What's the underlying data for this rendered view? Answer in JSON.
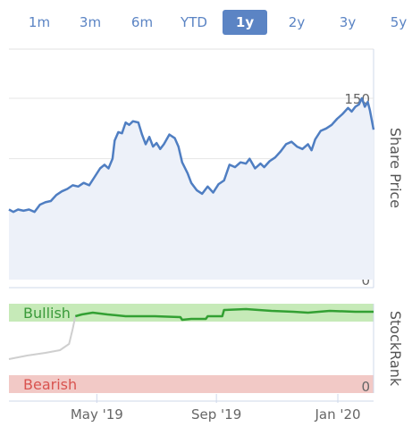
{
  "range_buttons": [
    {
      "label": "1m",
      "active": false
    },
    {
      "label": "3m",
      "active": false
    },
    {
      "label": "6m",
      "active": false
    },
    {
      "label": "YTD",
      "active": false
    },
    {
      "label": "1y",
      "active": true
    },
    {
      "label": "2y",
      "active": false
    },
    {
      "label": "3y",
      "active": false
    },
    {
      "label": "5y",
      "active": false
    }
  ],
  "colors": {
    "accent": "#5b84c4",
    "price_line": "#4f7ec2",
    "price_fill": "#edf1f9",
    "bullish_band": "#c6eab8",
    "bearish_band": "#f2c9c6",
    "stockrank_line": "#33a033",
    "stockrank_early": "#cfcfcf",
    "bullish_text": "#3a9a3a",
    "bearish_text": "#d9534f"
  },
  "chart_data": [
    {
      "type": "line",
      "title": "",
      "ylabel": "Share Price",
      "ylim": [
        0,
        160
      ],
      "yticks": [
        0,
        50,
        100,
        150
      ],
      "x_range": [
        0,
        1
      ],
      "xticks": [
        {
          "x": 0.241,
          "label": "May '19"
        },
        {
          "x": 0.569,
          "label": "Sep '19"
        },
        {
          "x": 0.902,
          "label": "Jan '20"
        }
      ],
      "series": [
        {
          "name": "",
          "points": [
            [
              0,
              58
            ],
            [
              0.012,
              56
            ],
            [
              0.025,
              58
            ],
            [
              0.04,
              57
            ],
            [
              0.055,
              58
            ],
            [
              0.07,
              56
            ],
            [
              0.085,
              62
            ],
            [
              0.1,
              64
            ],
            [
              0.115,
              65
            ],
            [
              0.13,
              70
            ],
            [
              0.145,
              73
            ],
            [
              0.16,
              75
            ],
            [
              0.175,
              78
            ],
            [
              0.19,
              77
            ],
            [
              0.205,
              80
            ],
            [
              0.22,
              78
            ],
            [
              0.235,
              85
            ],
            [
              0.25,
              92
            ],
            [
              0.262,
              95
            ],
            [
              0.273,
              92
            ],
            [
              0.284,
              100
            ],
            [
              0.29,
              115
            ],
            [
              0.3,
              122
            ],
            [
              0.31,
              121
            ],
            [
              0.32,
              130
            ],
            [
              0.33,
              128
            ],
            [
              0.34,
              131
            ],
            [
              0.355,
              130
            ],
            [
              0.365,
              120
            ],
            [
              0.375,
              112
            ],
            [
              0.385,
              118
            ],
            [
              0.395,
              110
            ],
            [
              0.405,
              113
            ],
            [
              0.415,
              108
            ],
            [
              0.425,
              112
            ],
            [
              0.44,
              120
            ],
            [
              0.455,
              117
            ],
            [
              0.465,
              110
            ],
            [
              0.475,
              97
            ],
            [
              0.49,
              88
            ],
            [
              0.5,
              80
            ],
            [
              0.515,
              74
            ],
            [
              0.53,
              71
            ],
            [
              0.545,
              77
            ],
            [
              0.56,
              72
            ],
            [
              0.575,
              79
            ],
            [
              0.59,
              82
            ],
            [
              0.605,
              95
            ],
            [
              0.62,
              93
            ],
            [
              0.635,
              97
            ],
            [
              0.65,
              96
            ],
            [
              0.66,
              100
            ],
            [
              0.675,
              92
            ],
            [
              0.69,
              96
            ],
            [
              0.7,
              93
            ],
            [
              0.715,
              98
            ],
            [
              0.73,
              101
            ],
            [
              0.745,
              106
            ],
            [
              0.76,
              112
            ],
            [
              0.775,
              114
            ],
            [
              0.79,
              110
            ],
            [
              0.805,
              108
            ],
            [
              0.82,
              112
            ],
            [
              0.83,
              107
            ],
            [
              0.84,
              116
            ],
            [
              0.855,
              123
            ],
            [
              0.87,
              125
            ],
            [
              0.885,
              128
            ],
            [
              0.9,
              133
            ],
            [
              0.915,
              137
            ],
            [
              0.93,
              142
            ],
            [
              0.94,
              139
            ],
            [
              0.95,
              143
            ],
            [
              0.96,
              145
            ],
            [
              0.968,
              150
            ],
            [
              0.976,
              143
            ],
            [
              0.984,
              147
            ],
            [
              0.99,
              140
            ],
            [
              1.0,
              124
            ]
          ]
        }
      ]
    },
    {
      "type": "line",
      "ylabel": "StockRank",
      "ylim": [
        0,
        100
      ],
      "yticks": [
        0
      ],
      "bands": [
        {
          "label": "Bullish",
          "from": 80,
          "to": 100
        },
        {
          "label": "Bearish",
          "from": 0,
          "to": 20
        }
      ],
      "series": [
        {
          "name": "",
          "style": "early",
          "points": [
            [
              0,
              38
            ],
            [
              0.05,
              42
            ],
            [
              0.1,
              45
            ],
            [
              0.14,
              48
            ],
            [
              0.165,
              55
            ],
            [
              0.175,
              72
            ],
            [
              0.182,
              86
            ]
          ]
        },
        {
          "name": "",
          "style": "main",
          "points": [
            [
              0.182,
              86
            ],
            [
              0.2,
              88
            ],
            [
              0.23,
              90
            ],
            [
              0.27,
              88
            ],
            [
              0.32,
              86
            ],
            [
              0.4,
              86
            ],
            [
              0.47,
              85
            ],
            [
              0.475,
              82
            ],
            [
              0.5,
              83
            ],
            [
              0.54,
              83
            ],
            [
              0.545,
              86
            ],
            [
              0.585,
              86
            ],
            [
              0.59,
              93
            ],
            [
              0.65,
              94
            ],
            [
              0.72,
              92
            ],
            [
              0.78,
              91
            ],
            [
              0.82,
              90
            ],
            [
              0.88,
              92
            ],
            [
              0.95,
              91
            ],
            [
              1.0,
              91
            ]
          ]
        }
      ]
    }
  ]
}
